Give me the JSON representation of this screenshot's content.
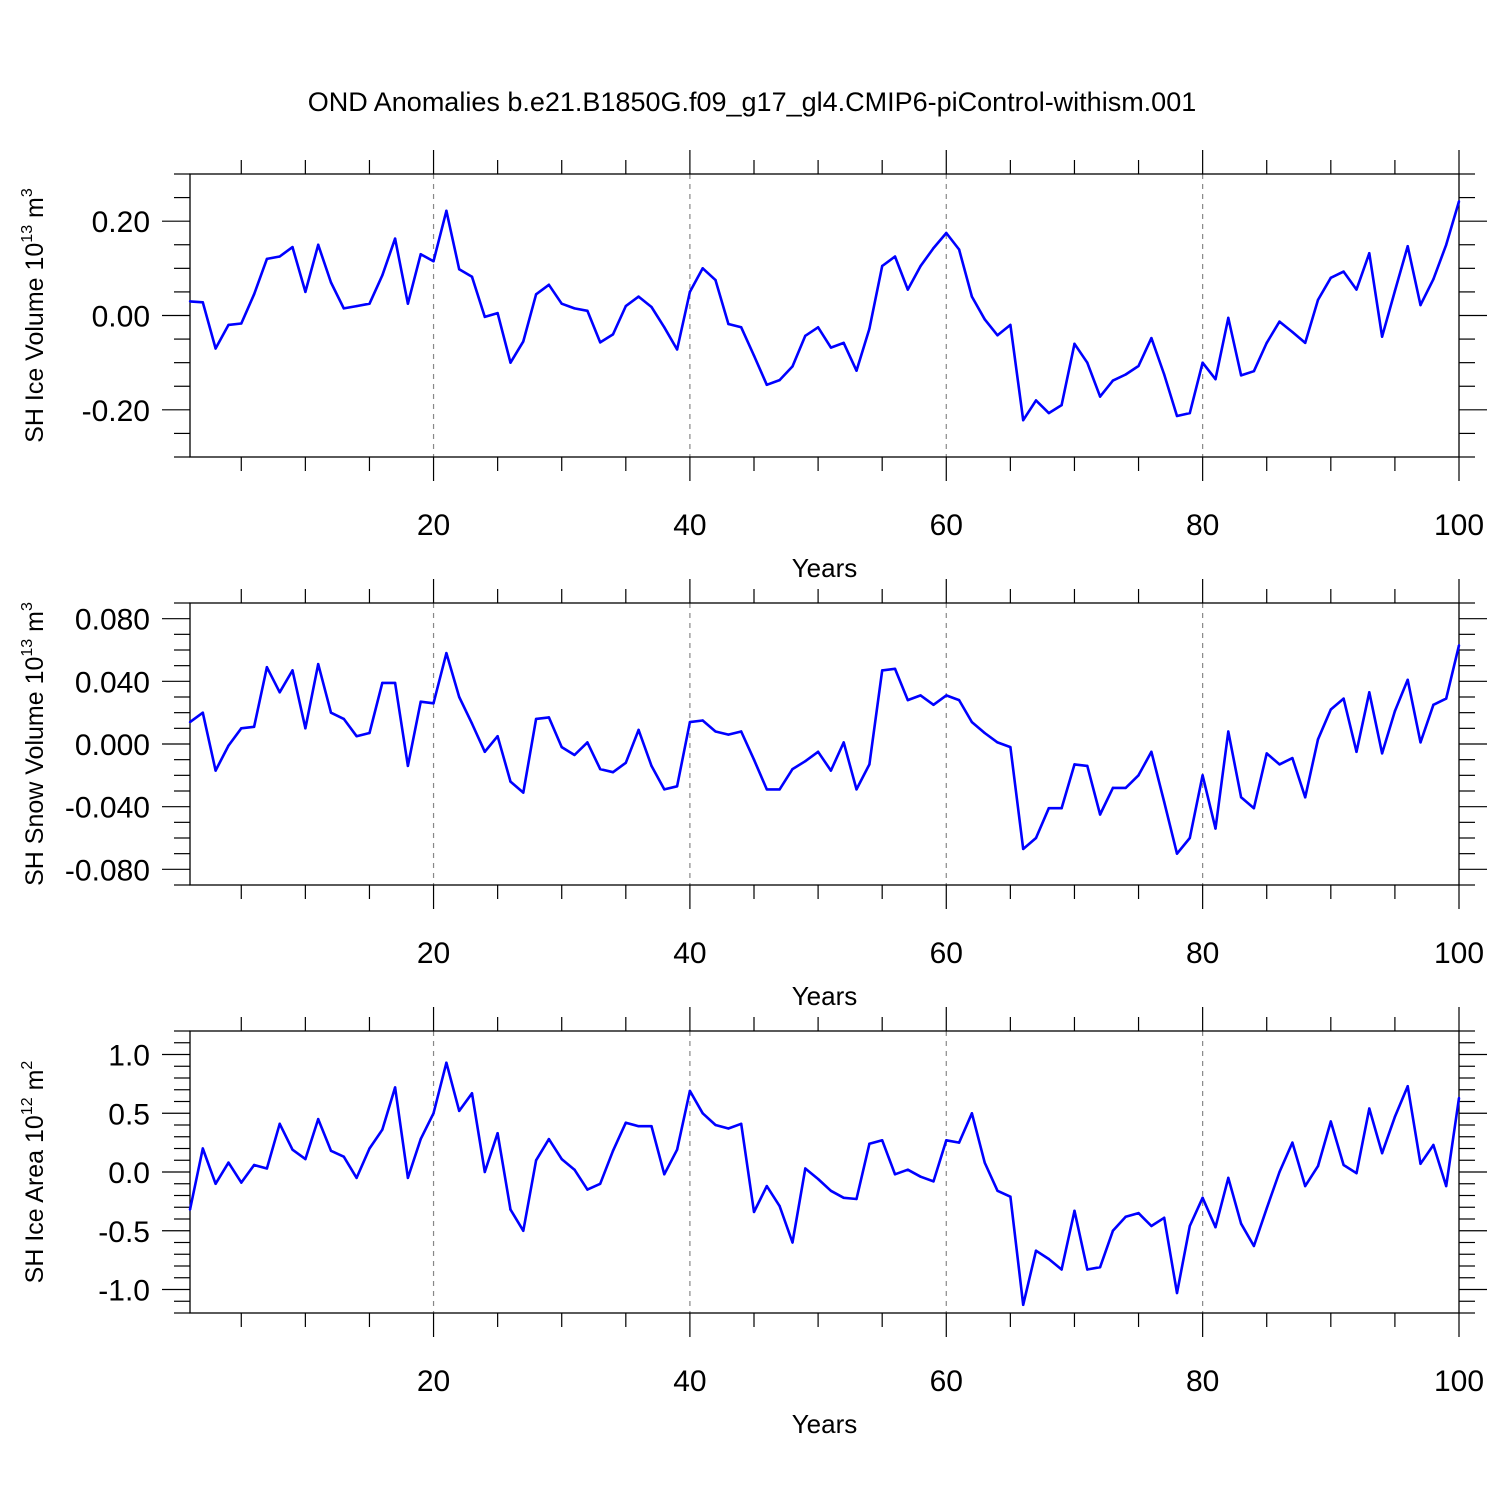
{
  "figure": {
    "title": "OND Anomalies b.e21.B1850G.f09_g17_gl4.CMIP6-piControl-withism.001",
    "line_color": "#0000ff"
  },
  "chart_data": [
    {
      "type": "line",
      "xlabel": "Years",
      "ylabel": {
        "text": "SH Ice Volume 10",
        "exponent": "13",
        "unit": " m",
        "unit_exponent": "3"
      },
      "xlim": [
        1,
        100
      ],
      "ylim": [
        -0.3,
        0.3
      ],
      "x_ticks": [
        20,
        40,
        60,
        80,
        100
      ],
      "x_tick_labels": [
        "20",
        "40",
        "60",
        "80",
        "100"
      ],
      "y_ticks": [
        -0.2,
        0.0,
        0.2
      ],
      "y_tick_labels": [
        "-0.20",
        "0.00",
        "0.20"
      ],
      "y_minor_step": 0.05,
      "grid": "vertical dashed at major x ticks",
      "x": [
        1,
        2,
        3,
        4,
        5,
        6,
        7,
        8,
        9,
        10,
        11,
        12,
        13,
        14,
        15,
        16,
        17,
        18,
        19,
        20,
        21,
        22,
        23,
        24,
        25,
        26,
        27,
        28,
        29,
        30,
        31,
        32,
        33,
        34,
        35,
        36,
        37,
        38,
        39,
        40,
        41,
        42,
        43,
        44,
        45,
        46,
        47,
        48,
        49,
        50,
        51,
        52,
        53,
        54,
        55,
        56,
        57,
        58,
        59,
        60,
        61,
        62,
        63,
        64,
        65,
        66,
        67,
        68,
        69,
        70,
        71,
        72,
        73,
        74,
        75,
        76,
        77,
        78,
        79,
        80,
        81,
        82,
        83,
        84,
        85,
        86,
        87,
        88,
        89,
        90,
        91,
        92,
        93,
        94,
        95,
        96,
        97,
        98,
        99,
        100
      ],
      "series": [
        {
          "values": [
            0.03,
            0.028,
            -0.07,
            -0.02,
            -0.017,
            0.045,
            0.12,
            0.125,
            0.145,
            0.05,
            0.15,
            0.07,
            0.015,
            0.02,
            0.025,
            0.085,
            0.163,
            0.025,
            0.13,
            0.115,
            0.222,
            0.098,
            0.082,
            -0.003,
            0.005,
            -0.1,
            -0.055,
            0.045,
            0.065,
            0.025,
            0.015,
            0.01,
            -0.057,
            -0.04,
            0.02,
            0.04,
            0.018,
            -0.025,
            -0.072,
            0.05,
            0.1,
            0.075,
            -0.018,
            -0.025,
            -0.085,
            -0.147,
            -0.137,
            -0.108,
            -0.043,
            -0.025,
            -0.068,
            -0.058,
            -0.117,
            -0.028,
            0.105,
            0.125,
            0.055,
            0.105,
            0.143,
            0.175,
            0.14,
            0.04,
            -0.008,
            -0.042,
            -0.02,
            -0.222,
            -0.18,
            -0.207,
            -0.19,
            -0.06,
            -0.1,
            -0.172,
            -0.138,
            -0.125,
            -0.107,
            -0.048,
            -0.125,
            -0.213,
            -0.207,
            -0.1,
            -0.135,
            -0.005,
            -0.127,
            -0.118,
            -0.058,
            -0.013,
            -0.035,
            -0.058,
            0.033,
            0.08,
            0.093,
            0.055,
            0.132,
            -0.045,
            0.052,
            0.147,
            0.022,
            0.077,
            0.15,
            0.242
          ]
        }
      ]
    },
    {
      "type": "line",
      "xlabel": "Years",
      "ylabel": {
        "text": "SH Snow Volume 10",
        "exponent": "13",
        "unit": " m",
        "unit_exponent": "3"
      },
      "xlim": [
        1,
        100
      ],
      "ylim": [
        -0.09,
        0.09
      ],
      "x_ticks": [
        20,
        40,
        60,
        80,
        100
      ],
      "x_tick_labels": [
        "20",
        "40",
        "60",
        "80",
        "100"
      ],
      "y_ticks": [
        -0.08,
        -0.04,
        0.0,
        0.04,
        0.08
      ],
      "y_tick_labels": [
        "-0.080",
        "-0.040",
        "0.000",
        "0.040",
        "0.080"
      ],
      "y_minor_step": 0.01,
      "grid": "vertical dashed at major x ticks",
      "x": [
        1,
        2,
        3,
        4,
        5,
        6,
        7,
        8,
        9,
        10,
        11,
        12,
        13,
        14,
        15,
        16,
        17,
        18,
        19,
        20,
        21,
        22,
        23,
        24,
        25,
        26,
        27,
        28,
        29,
        30,
        31,
        32,
        33,
        34,
        35,
        36,
        37,
        38,
        39,
        40,
        41,
        42,
        43,
        44,
        45,
        46,
        47,
        48,
        49,
        50,
        51,
        52,
        53,
        54,
        55,
        56,
        57,
        58,
        59,
        60,
        61,
        62,
        63,
        64,
        65,
        66,
        67,
        68,
        69,
        70,
        71,
        72,
        73,
        74,
        75,
        76,
        77,
        78,
        79,
        80,
        81,
        82,
        83,
        84,
        85,
        86,
        87,
        88,
        89,
        90,
        91,
        92,
        93,
        94,
        95,
        96,
        97,
        98,
        99,
        100
      ],
      "series": [
        {
          "values": [
            0.014,
            0.02,
            -0.017,
            -0.001,
            0.01,
            0.011,
            0.049,
            0.033,
            0.047,
            0.01,
            0.051,
            0.02,
            0.016,
            0.005,
            0.007,
            0.039,
            0.039,
            -0.014,
            0.027,
            0.026,
            0.058,
            0.03,
            0.013,
            -0.005,
            0.005,
            -0.024,
            -0.031,
            0.016,
            0.017,
            -0.002,
            -0.007,
            0.001,
            -0.016,
            -0.018,
            -0.012,
            0.009,
            -0.014,
            -0.029,
            -0.027,
            0.014,
            0.015,
            0.008,
            0.006,
            0.008,
            -0.01,
            -0.029,
            -0.029,
            -0.016,
            -0.011,
            -0.005,
            -0.017,
            0.001,
            -0.029,
            -0.013,
            0.047,
            0.048,
            0.028,
            0.031,
            0.025,
            0.031,
            0.028,
            0.014,
            0.007,
            0.001,
            -0.002,
            -0.067,
            -0.06,
            -0.041,
            -0.041,
            -0.013,
            -0.014,
            -0.045,
            -0.028,
            -0.028,
            -0.02,
            -0.005,
            -0.037,
            -0.07,
            -0.06,
            -0.02,
            -0.054,
            0.008,
            -0.034,
            -0.041,
            -0.006,
            -0.013,
            -0.009,
            -0.034,
            0.003,
            0.022,
            0.029,
            -0.005,
            0.033,
            -0.006,
            0.021,
            0.041,
            0.001,
            0.025,
            0.029,
            0.063
          ]
        }
      ]
    },
    {
      "type": "line",
      "xlabel": "Years",
      "ylabel": {
        "text": "SH Ice Area 10",
        "exponent": "12",
        "unit": " m",
        "unit_exponent": "2"
      },
      "xlim": [
        1,
        100
      ],
      "ylim": [
        -1.2,
        1.2
      ],
      "x_ticks": [
        20,
        40,
        60,
        80,
        100
      ],
      "x_tick_labels": [
        "20",
        "40",
        "60",
        "80",
        "100"
      ],
      "y_ticks": [
        -1.0,
        -0.5,
        0.0,
        0.5,
        1.0
      ],
      "y_tick_labels": [
        "-1.0",
        "-0.5",
        "0.0",
        "0.5",
        "1.0"
      ],
      "y_minor_step": 0.1,
      "grid": "vertical dashed at major x ticks",
      "x": [
        1,
        2,
        3,
        4,
        5,
        6,
        7,
        8,
        9,
        10,
        11,
        12,
        13,
        14,
        15,
        16,
        17,
        18,
        19,
        20,
        21,
        22,
        23,
        24,
        25,
        26,
        27,
        28,
        29,
        30,
        31,
        32,
        33,
        34,
        35,
        36,
        37,
        38,
        39,
        40,
        41,
        42,
        43,
        44,
        45,
        46,
        47,
        48,
        49,
        50,
        51,
        52,
        53,
        54,
        55,
        56,
        57,
        58,
        59,
        60,
        61,
        62,
        63,
        64,
        65,
        66,
        67,
        68,
        69,
        70,
        71,
        72,
        73,
        74,
        75,
        76,
        77,
        78,
        79,
        80,
        81,
        82,
        83,
        84,
        85,
        86,
        87,
        88,
        89,
        90,
        91,
        92,
        93,
        94,
        95,
        96,
        97,
        98,
        99,
        100
      ],
      "series": [
        {
          "values": [
            -0.32,
            0.2,
            -0.1,
            0.08,
            -0.09,
            0.06,
            0.03,
            0.41,
            0.19,
            0.11,
            0.45,
            0.18,
            0.13,
            -0.05,
            0.2,
            0.36,
            0.72,
            -0.05,
            0.28,
            0.5,
            0.93,
            0.52,
            0.67,
            0.0,
            0.33,
            -0.32,
            -0.5,
            0.1,
            0.28,
            0.11,
            0.02,
            -0.15,
            -0.1,
            0.18,
            0.42,
            0.39,
            0.39,
            -0.02,
            0.19,
            0.69,
            0.5,
            0.4,
            0.37,
            0.41,
            -0.34,
            -0.12,
            -0.29,
            -0.6,
            0.03,
            -0.06,
            -0.16,
            -0.22,
            -0.23,
            0.24,
            0.27,
            -0.02,
            0.02,
            -0.04,
            -0.08,
            0.27,
            0.25,
            0.5,
            0.08,
            -0.16,
            -0.21,
            -1.13,
            -0.67,
            -0.74,
            -0.83,
            -0.33,
            -0.83,
            -0.81,
            -0.5,
            -0.38,
            -0.35,
            -0.46,
            -0.39,
            -1.03,
            -0.46,
            -0.22,
            -0.47,
            -0.05,
            -0.44,
            -0.63,
            -0.31,
            0.0,
            0.25,
            -0.12,
            0.05,
            0.43,
            0.06,
            -0.01,
            0.54,
            0.16,
            0.47,
            0.73,
            0.07,
            0.23,
            -0.12,
            0.63
          ]
        }
      ]
    }
  ]
}
